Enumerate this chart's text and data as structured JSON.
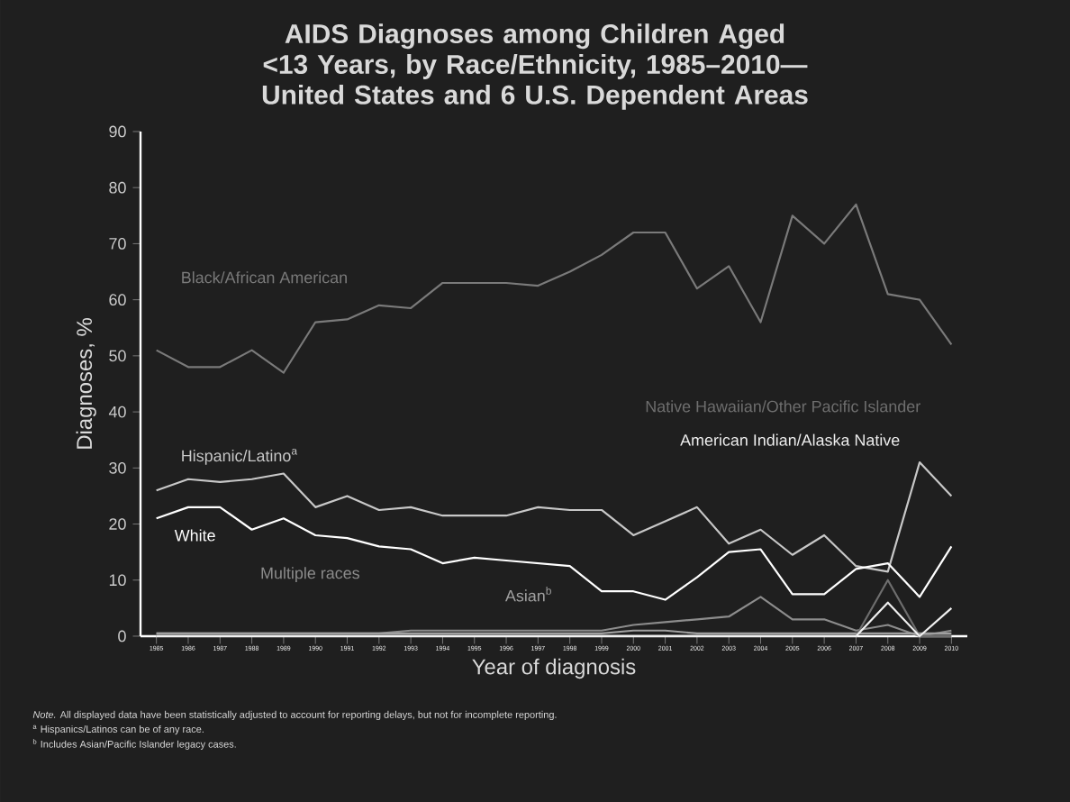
{
  "chart_data": {
    "type": "line",
    "title": "AIDS Diagnoses among Children Aged <13 Years, by Race/Ethnicity, 1985–2010—United States and 6 U.S. Dependent Areas",
    "xlabel": "Year of diagnosis",
    "ylabel": "Diagnoses, %",
    "categories": [
      "1985",
      "1986",
      "1987",
      "1988",
      "1989",
      "1990",
      "1991",
      "1992",
      "1993",
      "1994",
      "1995",
      "1996",
      "1997",
      "1998",
      "1999",
      "2000",
      "2001",
      "2002",
      "2003",
      "2004",
      "2005",
      "2006",
      "2007",
      "2008",
      "2009",
      "2010"
    ],
    "ylim": [
      0,
      90
    ],
    "yticks": [
      0,
      10,
      20,
      30,
      40,
      50,
      60,
      70,
      80,
      90
    ],
    "marker": "none",
    "line_style": "solid",
    "series": [
      {
        "name": "Black/African American",
        "color": "#7a7a7a",
        "values": [
          51,
          48,
          48,
          51,
          47,
          56,
          56.5,
          59,
          58.5,
          63,
          63,
          63,
          62.5,
          65,
          68,
          72,
          72,
          62,
          66,
          56,
          75,
          70,
          77,
          61,
          60,
          52
        ]
      },
      {
        "name": "Hispanic/Latino$^{a}$",
        "color": "#c8c8c8",
        "values": [
          26,
          28,
          27.5,
          28,
          29,
          23,
          25,
          22.5,
          23,
          21.5,
          21.5,
          21.5,
          23,
          22.5,
          22.5,
          18,
          20.5,
          23,
          16.5,
          19,
          14.5,
          18,
          12.5,
          11.5,
          31,
          25
        ]
      },
      {
        "name": "White",
        "color": "#ffffff",
        "values": [
          21,
          23,
          23,
          19,
          21,
          18,
          17.5,
          16,
          15.5,
          13,
          14,
          13.5,
          13,
          12.5,
          8,
          8,
          6.5,
          10.5,
          15,
          15.5,
          7.5,
          7.5,
          12,
          13,
          7,
          16
        ]
      },
      {
        "name": "Multiple races",
        "color": "#8c8c8c",
        "values": [
          0.5,
          0.5,
          0.5,
          0.5,
          0.5,
          0.5,
          0.5,
          0.5,
          1,
          1,
          1,
          1,
          1,
          1,
          1,
          2,
          2.5,
          3,
          3.5,
          7,
          3,
          3,
          1,
          2,
          0,
          1
        ]
      },
      {
        "name": "Asian$^{b}$",
        "color": "#a0a0a0",
        "values": [
          0.5,
          0.5,
          0.5,
          0.5,
          0.5,
          0.5,
          0.5,
          0.5,
          0.5,
          0.5,
          0.5,
          0.5,
          0.5,
          0.5,
          0.5,
          1,
          1,
          0.5,
          0.5,
          0.5,
          0.5,
          0.5,
          0.5,
          0.5,
          0.5,
          0.5
        ]
      },
      {
        "name": "Native Hawaiian/Other Pacific Islander",
        "color": "#6e6e6e",
        "values": [
          0,
          0,
          0,
          0,
          0,
          0,
          0,
          0,
          0,
          0,
          0,
          0,
          0,
          0,
          0,
          0,
          0,
          0,
          0,
          0,
          0,
          0,
          0,
          10,
          0,
          0
        ]
      },
      {
        "name": "American Indian/Alaska Native",
        "color": "#f0f0f0",
        "values": [
          0,
          0,
          0,
          0,
          0,
          0,
          0,
          0,
          0,
          0,
          0,
          0,
          0,
          0,
          0,
          0,
          0,
          0,
          0,
          0,
          0,
          0,
          0,
          6,
          0,
          5
        ]
      }
    ],
    "annotations": [
      "*Note.* All displayed data have been statistically adjusted to account for reporting delays, but not for incomplete reporting.",
      "$^{a}$ Hispanics/Latinos can be of any race.",
      "$^{b}$ Includes Asian/Pacific Islander legacy cases."
    ]
  }
}
